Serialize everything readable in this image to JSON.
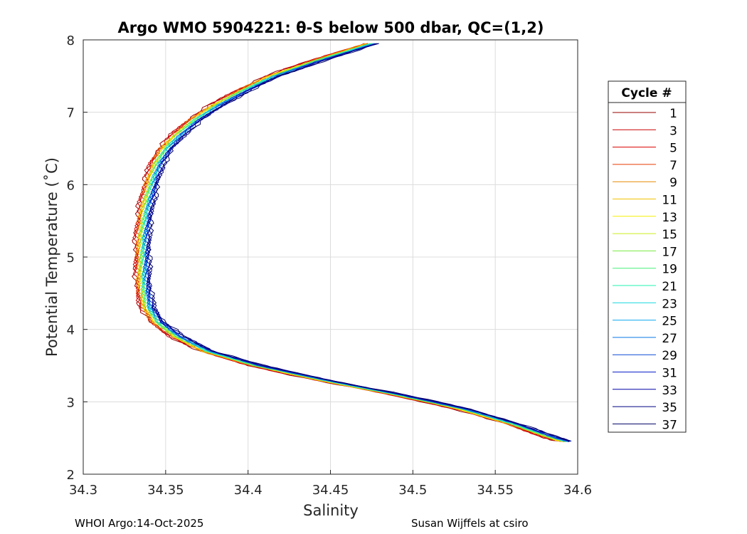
{
  "chart_data": {
    "type": "line",
    "title": "Argo WMO 5904221: θ-S below 500 dbar,  QC=(1,2)",
    "xlabel": "Salinity",
    "ylabel": "Potential Temperature (˚C)",
    "xlim": [
      34.3,
      34.6
    ],
    "ylim": [
      2,
      8
    ],
    "xticks": [
      "34.3",
      "34.35",
      "34.4",
      "34.45",
      "34.5",
      "34.55",
      "34.6"
    ],
    "yticks": [
      "2",
      "3",
      "4",
      "5",
      "6",
      "7",
      "8"
    ],
    "grid": true,
    "legend": {
      "title": "Cycle #",
      "position": "outside-right",
      "entries": [
        {
          "label": "1",
          "color": "#9a0000"
        },
        {
          "label": "3",
          "color": "#cc0000"
        },
        {
          "label": "5",
          "color": "#d90000"
        },
        {
          "label": "7",
          "color": "#e63b00"
        },
        {
          "label": "9",
          "color": "#e68a00"
        },
        {
          "label": "11",
          "color": "#f2c200"
        },
        {
          "label": "13",
          "color": "#f5ef00"
        },
        {
          "label": "15",
          "color": "#c8ef1a"
        },
        {
          "label": "17",
          "color": "#7ae840"
        },
        {
          "label": "19",
          "color": "#45f07a"
        },
        {
          "label": "21",
          "color": "#22f0b0"
        },
        {
          "label": "23",
          "color": "#17d8e0"
        },
        {
          "label": "25",
          "color": "#0fa8ef"
        },
        {
          "label": "27",
          "color": "#0a78e6"
        },
        {
          "label": "29",
          "color": "#0a48d6"
        },
        {
          "label": "31",
          "color": "#0c1fc8"
        },
        {
          "label": "33",
          "color": "#0000a8"
        },
        {
          "label": "35",
          "color": "#000085"
        },
        {
          "label": "37",
          "color": "#000066"
        }
      ]
    },
    "profile_mean": {
      "temperature": [
        7.95,
        7.7,
        7.5,
        7.3,
        7.1,
        6.9,
        6.7,
        6.5,
        6.3,
        6.1,
        5.9,
        5.7,
        5.5,
        5.3,
        5.1,
        4.9,
        4.7,
        4.5,
        4.3,
        4.1,
        3.9,
        3.7,
        3.5,
        3.3,
        3.1,
        2.9,
        2.7,
        2.5,
        2.45
      ],
      "salinity": [
        34.475,
        34.44,
        34.415,
        34.397,
        34.381,
        34.368,
        34.358,
        34.35,
        34.345,
        34.342,
        34.34,
        34.338,
        34.337,
        34.336,
        34.336,
        34.336,
        34.336,
        34.337,
        34.339,
        34.345,
        34.357,
        34.375,
        34.405,
        34.445,
        34.49,
        34.53,
        34.56,
        34.585,
        34.593
      ]
    },
    "series_offsets": [
      -0.0045,
      -0.004,
      -0.0035,
      -0.003,
      -0.0025,
      -0.002,
      -0.0015,
      -0.001,
      -0.0005,
      0.0,
      0.0005,
      0.001,
      0.0015,
      0.002,
      0.0025,
      0.003,
      0.0035,
      0.004,
      0.0045
    ]
  },
  "footer": {
    "left": "WHOI Argo:14-Oct-2025",
    "right": "Susan Wijffels at csiro"
  }
}
